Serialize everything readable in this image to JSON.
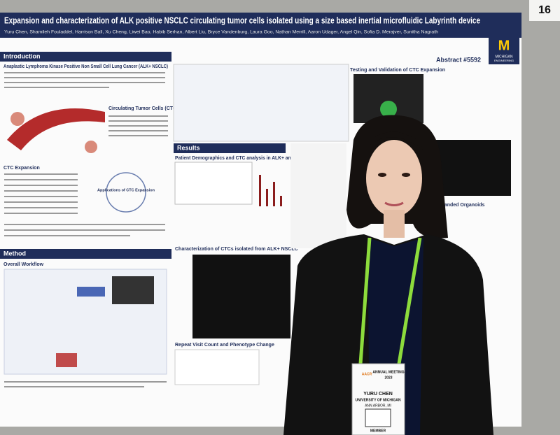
{
  "sign": {
    "number": "16"
  },
  "poster": {
    "title": "Expansion and characterization of ALK positive NSCLC circulating tumor cells isolated using a size based inertial microfluidic Labyrinth device",
    "authors": "Yuru Chen, Shamileh Fouladdel, Harrison Ball, Xu Cheng, Liwei Bao, Habib Serhan, Albert Liu, Bryce Vandenburg, Laura Goo, Nathan Merrill, Aaron Udager, Angel Qin, Sofia D. Merajver, Sunitha Nagrath",
    "abstract": "Abstract #5592",
    "logo": {
      "mark": "M",
      "line1": "MICHIGAN",
      "line2": "ENGINEERING"
    },
    "sections": {
      "introduction": "Introduction",
      "alk": "Anaplastic Lymphoma Kinase Positive Non Small Cell Lung Cancer (ALK+ NSCLC)",
      "ctcs": "Circulating Tumor Cells (CTCs)",
      "expansion": "CTC Expansion",
      "applications": "Applications of CTC Expansion",
      "method": "Method",
      "workflow": "Overall Workflow",
      "results": "Results",
      "demographics": "Patient Demographics and CTC analysis in ALK+ and ALK- NSCLC patients",
      "characterization": "Characterization of CTCs isolated from ALK+ NSCLC",
      "repeat": "Repeat Visit Count and Phenotype Change",
      "testing": "Testing and Validation of CTC Expansion",
      "organoids": "Expanded Organoids"
    }
  },
  "badge": {
    "meeting": "AACR",
    "event": "ANNUAL MEETING",
    "year": "2023",
    "name": "YURU CHEN",
    "affiliation": "UNIVERSITY OF MICHIGAN",
    "location": "ANN ARBOR, MI",
    "role": "MEMBER"
  }
}
